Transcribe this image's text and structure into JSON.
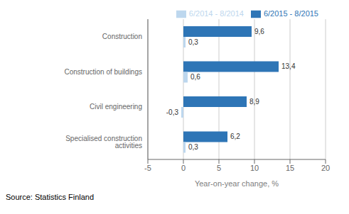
{
  "chart_data": {
    "type": "bar",
    "orientation": "horizontal",
    "categories": [
      "Construction",
      "Construction of buildings",
      "Civil engineering",
      "Specialised construction activities"
    ],
    "series": [
      {
        "name": "6/2015 - 8/2015",
        "color": "#2E75B6",
        "values": [
          9.6,
          13.4,
          8.9,
          6.2
        ],
        "value_labels": [
          "9,6",
          "13,4",
          "8,9",
          "6,2"
        ]
      },
      {
        "name": "6/2014 - 8/2014",
        "color": "#BDD7EE",
        "values": [
          0.3,
          0.6,
          -0.3,
          0.3
        ],
        "value_labels": [
          "0,3",
          "0,6",
          "-0,3",
          "0,3"
        ]
      }
    ],
    "xlabel": "Year-on-year change, %",
    "xlim": [
      -5,
      20
    ],
    "xticks": [
      -5,
      0,
      5,
      10,
      15,
      20
    ],
    "grid": true,
    "legend": "upper right",
    "data_labels": true,
    "source": "Source: Statistics Finland"
  }
}
